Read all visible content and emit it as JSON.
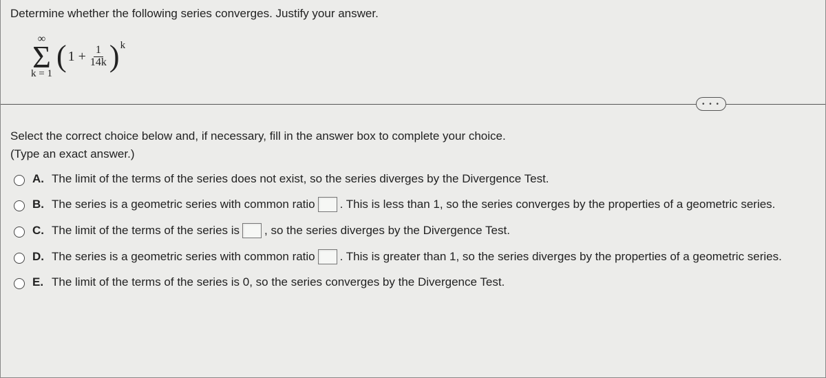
{
  "question": {
    "prompt": "Determine whether the following series converges. Justify your answer.",
    "sigma_top": "∞",
    "sigma_symbol": "Σ",
    "sigma_bottom": "k = 1",
    "inner_lead": "1 +",
    "frac_top": "1",
    "frac_bot": "14k",
    "exponent": "k"
  },
  "ellipsis": "• • •",
  "instruction_line1": "Select the correct choice below and, if necessary, fill in the answer box to complete your choice.",
  "instruction_line2": "(Type an exact answer.)",
  "choices": {
    "a": {
      "letter": "A.",
      "text": "The limit of the terms of the series does not exist, so the series diverges by the Divergence Test."
    },
    "b": {
      "letter": "B.",
      "pre": "The series is a geometric series with common ratio",
      "post": ". This is less than 1, so the series converges by the properties of a geometric series."
    },
    "c": {
      "letter": "C.",
      "pre": "The limit of the terms of the series is",
      "post": ", so the series diverges by the Divergence Test."
    },
    "d": {
      "letter": "D.",
      "pre": "The series is a geometric series with common ratio",
      "post": ". This is greater than 1, so the series diverges by the properties of a geometric series."
    },
    "e": {
      "letter": "E.",
      "text": "The limit of the terms of the series is 0, so the series converges by the Divergence Test."
    }
  }
}
